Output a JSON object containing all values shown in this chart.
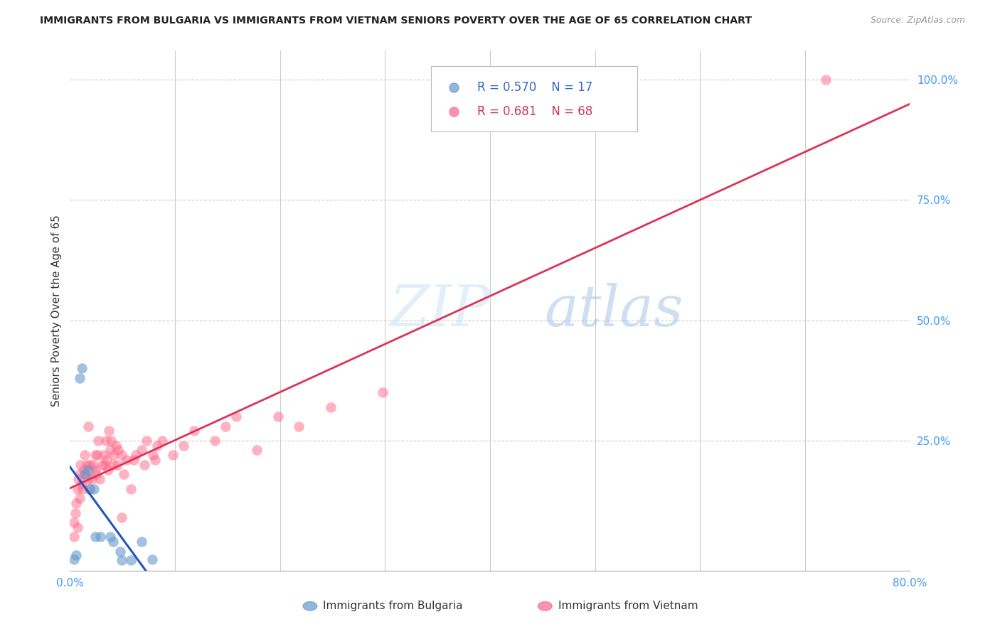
{
  "title": "IMMIGRANTS FROM BULGARIA VS IMMIGRANTS FROM VIETNAM SENIORS POVERTY OVER THE AGE OF 65 CORRELATION CHART",
  "source": "Source: ZipAtlas.com",
  "ylabel": "Seniors Poverty Over the Age of 65",
  "xlim": [
    0.0,
    0.8
  ],
  "ylim": [
    -0.02,
    1.06
  ],
  "bg_color": "#ffffff",
  "legend_R1": "0.570",
  "legend_N1": "17",
  "legend_R2": "0.681",
  "legend_N2": "68",
  "color_bulgaria": "#6699cc",
  "color_vietnam": "#ff6688",
  "color_bulgaria_line": "#2255bb",
  "color_vietnam_line": "#dd3355",
  "color_dashed": "#aabbdd",
  "grid_color": "#cccccc",
  "marker_size": 110,
  "bulgaria_x": [
    0.004,
    0.006,
    0.009,
    0.011,
    0.014,
    0.017,
    0.019,
    0.023,
    0.024,
    0.029,
    0.038,
    0.041,
    0.048,
    0.049,
    0.058,
    0.068,
    0.078
  ],
  "bulgaria_y": [
    0.003,
    0.012,
    0.38,
    0.4,
    0.18,
    0.19,
    0.15,
    0.15,
    0.05,
    0.05,
    0.05,
    0.04,
    0.02,
    0.002,
    0.002,
    0.04,
    0.003
  ],
  "vietnam_x": [
    0.004,
    0.004,
    0.005,
    0.006,
    0.007,
    0.007,
    0.008,
    0.009,
    0.009,
    0.01,
    0.011,
    0.012,
    0.013,
    0.014,
    0.015,
    0.016,
    0.017,
    0.017,
    0.019,
    0.019,
    0.021,
    0.022,
    0.024,
    0.024,
    0.025,
    0.026,
    0.027,
    0.028,
    0.031,
    0.032,
    0.033,
    0.034,
    0.035,
    0.036,
    0.037,
    0.038,
    0.039,
    0.041,
    0.042,
    0.044,
    0.045,
    0.046,
    0.049,
    0.049,
    0.051,
    0.054,
    0.058,
    0.061,
    0.063,
    0.068,
    0.071,
    0.073,
    0.079,
    0.081,
    0.083,
    0.088,
    0.098,
    0.108,
    0.118,
    0.138,
    0.148,
    0.158,
    0.178,
    0.198,
    0.218,
    0.248,
    0.298,
    0.72
  ],
  "vietnam_y": [
    0.05,
    0.08,
    0.1,
    0.12,
    0.15,
    0.07,
    0.17,
    0.13,
    0.18,
    0.2,
    0.16,
    0.15,
    0.19,
    0.22,
    0.18,
    0.2,
    0.17,
    0.28,
    0.15,
    0.2,
    0.17,
    0.2,
    0.19,
    0.22,
    0.18,
    0.22,
    0.25,
    0.17,
    0.2,
    0.22,
    0.2,
    0.25,
    0.21,
    0.19,
    0.27,
    0.23,
    0.25,
    0.2,
    0.22,
    0.24,
    0.2,
    0.23,
    0.22,
    0.09,
    0.18,
    0.21,
    0.15,
    0.21,
    0.22,
    0.23,
    0.2,
    0.25,
    0.22,
    0.21,
    0.24,
    0.25,
    0.22,
    0.24,
    0.27,
    0.25,
    0.28,
    0.3,
    0.23,
    0.3,
    0.28,
    0.32,
    0.35,
    1.0
  ]
}
